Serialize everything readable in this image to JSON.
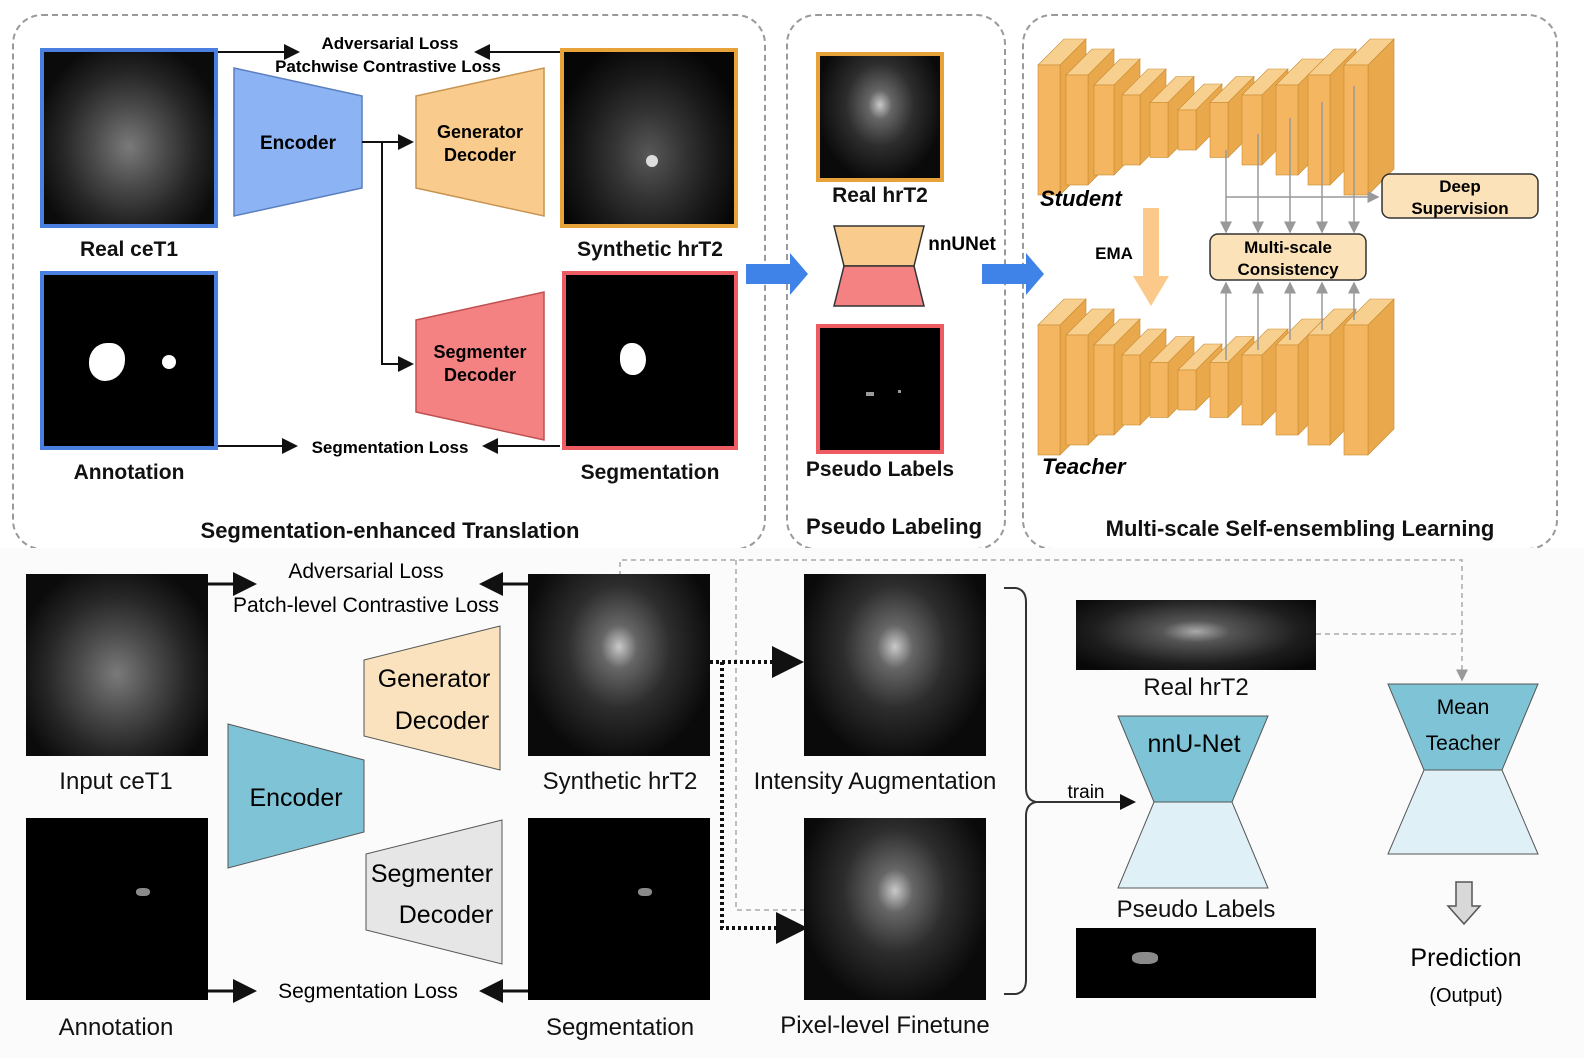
{
  "top": {
    "panel1": {
      "title": "Segmentation-enhanced Translation",
      "real_cet1": "Real ceT1",
      "annotation": "Annotation",
      "synthetic_hrt2": "Synthetic hrT2",
      "segmentation": "Segmentation",
      "encoder": "Encoder",
      "generator_decoder": [
        "Generator",
        "Decoder"
      ],
      "segmenter_decoder": [
        "Segmenter",
        "Decoder"
      ],
      "adversarial_loss": "Adversarial Loss",
      "patchwise_loss": "Patchwise Contrastive Loss",
      "segmentation_loss": "Segmentation Loss"
    },
    "panel2": {
      "title": "Pseudo Labeling",
      "real_hrt2": "Real hrT2",
      "nnunet": "nnUNet",
      "pseudo_labels": "Pseudo Labels"
    },
    "panel3": {
      "title": "Multi-scale Self-ensembling Learning",
      "student": "Student",
      "teacher": "Teacher",
      "ema": "EMA",
      "deep_supervision": [
        "Deep",
        "Supervision"
      ],
      "multi_scale_consistency": [
        "Multi-scale",
        "Consistency"
      ]
    }
  },
  "bottom": {
    "input_cet1": "Input ceT1",
    "annotation": "Annotation",
    "encoder": "Encoder",
    "generator_decoder": [
      "Generator",
      "Decoder"
    ],
    "segmenter_decoder": [
      "Segmenter",
      "Decoder"
    ],
    "adversarial_loss": "Adversarial Loss",
    "patch_level_loss": "Patch-level Contrastive Loss",
    "segmentation_loss": "Segmentation Loss",
    "synthetic_hrt2": "Synthetic hrT2",
    "segmentation": "Segmentation",
    "intensity_augmentation": "Intensity Augmentation",
    "pixel_level_finetune": "Pixel-level Finetune",
    "train": "train",
    "real_hrt2": "Real hrT2",
    "nnunet": "nnU-Net",
    "pseudo_labels": "Pseudo Labels",
    "mean_teacher": [
      "Mean",
      "Teacher"
    ],
    "prediction": "Prediction",
    "output": "(Output)"
  },
  "colors": {
    "blue_frame": "#4a7fe0",
    "orange_frame": "#e8a23a",
    "red_frame": "#ef5b62",
    "encoder_top": "#8cb4f5",
    "generator_top": "#f9cc8e",
    "segmenter_top": "#f48282",
    "teal": "#7fc4d6",
    "light_teal": "#dff1f7",
    "unet_orange": "#f0b25a",
    "box_orange": "#fbe2b8"
  }
}
